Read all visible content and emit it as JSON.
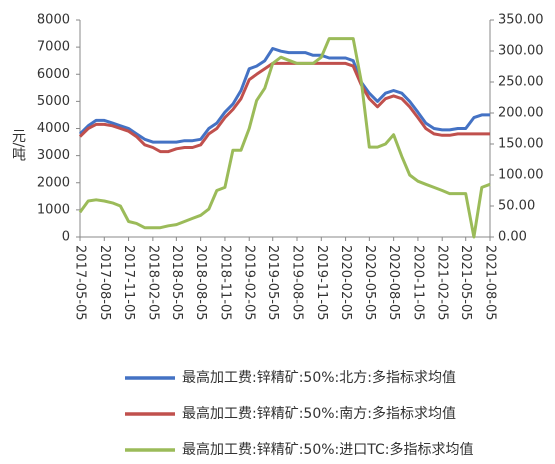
{
  "chart_data": {
    "type": "line",
    "y_label": "元/吨",
    "x": [
      "2017-05-05",
      "2017-06-05",
      "2017-07-05",
      "2017-08-05",
      "2017-09-05",
      "2017-10-05",
      "2017-11-05",
      "2017-12-05",
      "2018-01-05",
      "2018-02-05",
      "2018-03-05",
      "2018-04-05",
      "2018-05-05",
      "2018-06-05",
      "2018-07-05",
      "2018-08-05",
      "2018-09-05",
      "2018-10-05",
      "2018-11-05",
      "2018-12-05",
      "2019-01-05",
      "2019-02-05",
      "2019-03-05",
      "2019-04-05",
      "2019-05-05",
      "2019-06-05",
      "2019-07-05",
      "2019-08-05",
      "2019-09-05",
      "2019-10-05",
      "2019-11-05",
      "2019-12-05",
      "2020-01-05",
      "2020-02-05",
      "2020-03-05",
      "2020-04-05",
      "2020-05-05",
      "2020-06-05",
      "2020-07-05",
      "2020-08-05",
      "2020-09-05",
      "2020-10-05",
      "2020-11-05",
      "2020-12-05",
      "2021-01-05",
      "2021-02-05",
      "2021-03-05",
      "2021-04-05",
      "2021-05-05",
      "2021-06-05",
      "2021-07-05",
      "2021-08-05"
    ],
    "xlim": [
      "2017-05-05",
      "2021-08-05"
    ],
    "xticks": [
      "2017-05-05",
      "2017-08-05",
      "2017-11-05",
      "2018-02-05",
      "2018-05-05",
      "2018-08-05",
      "2018-11-05",
      "2019-02-05",
      "2019-05-05",
      "2019-08-05",
      "2019-11-05",
      "2020-02-05",
      "2020-05-05",
      "2020-08-05",
      "2020-11-05",
      "2021-02-05",
      "2021-05-05",
      "2021-08-05"
    ],
    "ylim": [
      0,
      8000
    ],
    "yticks": [
      0,
      1000,
      2000,
      3000,
      4000,
      5000,
      6000,
      7000,
      8000
    ],
    "y2lim": [
      0,
      350
    ],
    "y2ticks": [
      {
        "value": 0,
        "label": "0.00"
      },
      {
        "value": 50,
        "label": "50.00"
      },
      {
        "value": 100,
        "label": "100.00"
      },
      {
        "value": 150,
        "label": "150.00"
      },
      {
        "value": 200,
        "label": "200.00"
      },
      {
        "value": 250,
        "label": "250.00"
      },
      {
        "value": 300,
        "label": "300.00"
      },
      {
        "value": 350,
        "label": "350.00"
      }
    ],
    "series": [
      {
        "name": "最高加工费:锌精矿:50%:北方:多指标求均值",
        "color": "#4472c4",
        "values": [
          3800,
          4100,
          4300,
          4300,
          4200,
          4100,
          4000,
          3800,
          3600,
          3500,
          3500,
          3500,
          3500,
          3550,
          3550,
          3600,
          4000,
          4200,
          4600,
          4900,
          5400,
          6200,
          6300,
          6500,
          6950,
          6850,
          6800,
          6800,
          6800,
          6700,
          6700,
          6600,
          6600,
          6600,
          6500,
          5700,
          5300,
          5000,
          5300,
          5400,
          5300,
          5000,
          4600,
          4200,
          4000,
          3950,
          3950,
          4000,
          4000,
          4400,
          4500,
          4500
        ]
      },
      {
        "name": "最高加工费:锌精矿:50%:南方:多指标求均值",
        "color": "#c0504d",
        "values": [
          3700,
          4000,
          4150,
          4150,
          4100,
          4000,
          3900,
          3700,
          3400,
          3300,
          3150,
          3150,
          3250,
          3300,
          3300,
          3400,
          3800,
          4000,
          4400,
          4700,
          5100,
          5800,
          6000,
          6200,
          6400,
          6400,
          6400,
          6400,
          6400,
          6400,
          6400,
          6400,
          6400,
          6400,
          6300,
          5600,
          5100,
          4800,
          5100,
          5200,
          5100,
          4800,
          4400,
          4000,
          3800,
          3750,
          3750,
          3800,
          3800,
          3800,
          3800,
          3800
        ]
      },
      {
        "name": "最高加工费:锌精矿:50%:进口TC:多指标求均值",
        "color": "#9bbb59",
        "axis": "y2",
        "values": [
          40,
          58,
          60,
          58,
          55,
          50,
          25,
          22,
          15,
          15,
          15,
          18,
          20,
          25,
          30,
          35,
          45,
          75,
          80,
          140,
          140,
          175,
          220,
          240,
          280,
          290,
          285,
          280,
          280,
          280,
          290,
          320,
          320,
          320,
          320,
          250,
          145,
          145,
          150,
          165,
          130,
          100,
          90,
          85,
          80,
          75,
          70,
          70,
          70,
          0,
          80,
          85
        ]
      }
    ]
  }
}
